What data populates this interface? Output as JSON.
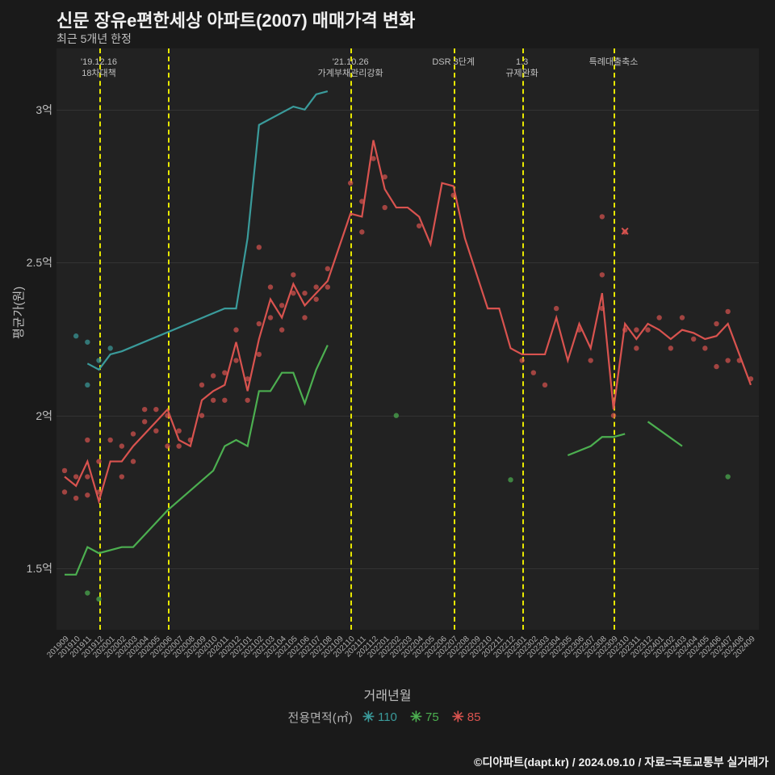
{
  "title": "신문 장유e편한세상 아파트(2007) 매매가격 변화",
  "subtitle": "최근 5개년 한정",
  "ylabel": "평균가(원)",
  "xlabel": "거래년월",
  "legend_title": "전용면적(㎡)",
  "footer": "©디아파트(dapt.kr) / 2024.09.10 / 자료=국토교통부 실거래가",
  "chart": {
    "type": "line+scatter",
    "background": "#222222",
    "page_bg": "#1a1a1a",
    "text_color": "#c0c0c0",
    "title_fontsize": 22,
    "subtitle_fontsize": 14,
    "label_fontsize": 15,
    "tick_fontsize": 12,
    "xcategories": [
      "201909",
      "201910",
      "201911",
      "201912",
      "202001",
      "202002",
      "202003",
      "202004",
      "202005",
      "202006",
      "202007",
      "202008",
      "202009",
      "202010",
      "202011",
      "202012",
      "202101",
      "202102",
      "202103",
      "202104",
      "202105",
      "202106",
      "202107",
      "202108",
      "202109",
      "202110",
      "202111",
      "202112",
      "202201",
      "202202",
      "202203",
      "202204",
      "202205",
      "202206",
      "202207",
      "202208",
      "202209",
      "202210",
      "202211",
      "202212",
      "202301",
      "202302",
      "202303",
      "202304",
      "202305",
      "202306",
      "202307",
      "202308",
      "202309",
      "202310",
      "202311",
      "202312",
      "202401",
      "202402",
      "202403",
      "202404",
      "202405",
      "202406",
      "202407",
      "202408",
      "202409"
    ],
    "ylim": [
      1.3,
      3.2
    ],
    "yticks": [
      1.5,
      2.0,
      2.5,
      3.0
    ],
    "ytick_labels": [
      "1.5억",
      "2억",
      "2.5억",
      "3억"
    ],
    "vlines": [
      {
        "x": "201912",
        "label": "'19.12.16\n18차대책",
        "color": "#e8e800"
      },
      {
        "x": "202006",
        "label": "",
        "color": "#e8e800"
      },
      {
        "x": "202110",
        "label": "'21.10.26\n가계부채관리강화",
        "color": "#e8e800"
      },
      {
        "x": "202207",
        "label": "DSR 3단계",
        "color": "#e8e800"
      },
      {
        "x": "202301",
        "label": "1.3\n규제완화",
        "color": "#e8e800"
      },
      {
        "x": "202309",
        "label": "특례대출축소",
        "color": "#e8e800"
      }
    ],
    "series": [
      {
        "name": "110",
        "color": "#3a9b9b",
        "marker": "x",
        "line": [
          {
            "x": "201911",
            "y": 2.17
          },
          {
            "x": "201912",
            "y": 2.15
          },
          {
            "x": "202001",
            "y": 2.2
          },
          {
            "x": "202002",
            "y": 2.21
          },
          {
            "x": "202011",
            "y": 2.35
          },
          {
            "x": "202012",
            "y": 2.35
          },
          {
            "x": "202101",
            "y": 2.58
          },
          {
            "x": "202102",
            "y": 2.95
          },
          {
            "x": "202104",
            "y": 2.99
          },
          {
            "x": "202105",
            "y": 3.01
          },
          {
            "x": "202106",
            "y": 3.0
          },
          {
            "x": "202107",
            "y": 3.05
          },
          {
            "x": "202108",
            "y": 3.06
          }
        ],
        "scatter": [
          {
            "x": "201910",
            "y": 2.26
          },
          {
            "x": "201911",
            "y": 2.1
          },
          {
            "x": "201911",
            "y": 2.24
          },
          {
            "x": "201912",
            "y": 2.18
          },
          {
            "x": "202001",
            "y": 2.22
          }
        ]
      },
      {
        "name": "75",
        "color": "#4caf50",
        "marker": "x",
        "line": [
          {
            "x": "201909",
            "y": 1.48
          },
          {
            "x": "201910",
            "y": 1.48
          },
          {
            "x": "201911",
            "y": 1.57
          },
          {
            "x": "201912",
            "y": 1.55
          },
          {
            "x": "202002",
            "y": 1.57
          },
          {
            "x": "202003",
            "y": 1.57
          },
          {
            "x": "202006",
            "y": 1.69
          },
          {
            "x": "202010",
            "y": 1.82
          },
          {
            "x": "202011",
            "y": 1.9
          },
          {
            "x": "202012",
            "y": 1.92
          },
          {
            "x": "202101",
            "y": 1.9
          },
          {
            "x": "202102",
            "y": 2.08
          },
          {
            "x": "202103",
            "y": 2.08
          },
          {
            "x": "202104",
            "y": 2.14
          },
          {
            "x": "202105",
            "y": 2.14
          },
          {
            "x": "202106",
            "y": 2.04
          },
          {
            "x": "202107",
            "y": 2.15
          },
          {
            "x": "202108",
            "y": 2.23
          }
        ],
        "line2": [
          {
            "x": "202305",
            "y": 1.87
          },
          {
            "x": "202307",
            "y": 1.9
          },
          {
            "x": "202308",
            "y": 1.93
          },
          {
            "x": "202309",
            "y": 1.93
          },
          {
            "x": "202310",
            "y": 1.94
          }
        ],
        "line3": [
          {
            "x": "202312",
            "y": 1.98
          },
          {
            "x": "202403",
            "y": 1.9
          }
        ],
        "scatter": [
          {
            "x": "201911",
            "y": 1.42
          },
          {
            "x": "201912",
            "y": 1.4
          },
          {
            "x": "202202",
            "y": 2.0
          },
          {
            "x": "202212",
            "y": 1.79
          },
          {
            "x": "202407",
            "y": 1.8
          }
        ]
      },
      {
        "name": "85",
        "color": "#d9534f",
        "marker": "x",
        "line": [
          {
            "x": "201909",
            "y": 1.8
          },
          {
            "x": "201910",
            "y": 1.77
          },
          {
            "x": "201911",
            "y": 1.85
          },
          {
            "x": "201912",
            "y": 1.72
          },
          {
            "x": "202001",
            "y": 1.85
          },
          {
            "x": "202002",
            "y": 1.85
          },
          {
            "x": "202003",
            "y": 1.9
          },
          {
            "x": "202004",
            "y": 1.94
          },
          {
            "x": "202005",
            "y": 1.98
          },
          {
            "x": "202006",
            "y": 2.02
          },
          {
            "x": "202007",
            "y": 1.92
          },
          {
            "x": "202008",
            "y": 1.9
          },
          {
            "x": "202009",
            "y": 2.05
          },
          {
            "x": "202010",
            "y": 2.08
          },
          {
            "x": "202011",
            "y": 2.1
          },
          {
            "x": "202012",
            "y": 2.24
          },
          {
            "x": "202101",
            "y": 2.08
          },
          {
            "x": "202102",
            "y": 2.25
          },
          {
            "x": "202103",
            "y": 2.38
          },
          {
            "x": "202104",
            "y": 2.32
          },
          {
            "x": "202105",
            "y": 2.43
          },
          {
            "x": "202106",
            "y": 2.36
          },
          {
            "x": "202107",
            "y": 2.4
          },
          {
            "x": "202108",
            "y": 2.44
          },
          {
            "x": "202110",
            "y": 2.66
          },
          {
            "x": "202111",
            "y": 2.65
          },
          {
            "x": "202112",
            "y": 2.9
          },
          {
            "x": "202201",
            "y": 2.74
          },
          {
            "x": "202202",
            "y": 2.68
          },
          {
            "x": "202203",
            "y": 2.68
          },
          {
            "x": "202204",
            "y": 2.65
          },
          {
            "x": "202205",
            "y": 2.56
          },
          {
            "x": "202206",
            "y": 2.76
          },
          {
            "x": "202207",
            "y": 2.75
          },
          {
            "x": "202208",
            "y": 2.58
          },
          {
            "x": "202210",
            "y": 2.35
          },
          {
            "x": "202211",
            "y": 2.35
          },
          {
            "x": "202212",
            "y": 2.22
          },
          {
            "x": "202301",
            "y": 2.2
          },
          {
            "x": "202302",
            "y": 2.2
          },
          {
            "x": "202303",
            "y": 2.2
          },
          {
            "x": "202304",
            "y": 2.32
          },
          {
            "x": "202305",
            "y": 2.18
          },
          {
            "x": "202306",
            "y": 2.3
          },
          {
            "x": "202307",
            "y": 2.22
          },
          {
            "x": "202308",
            "y": 2.4
          },
          {
            "x": "202309",
            "y": 2.02
          },
          {
            "x": "202310",
            "y": 2.3
          },
          {
            "x": "202311",
            "y": 2.25
          },
          {
            "x": "202312",
            "y": 2.3
          },
          {
            "x": "202401",
            "y": 2.28
          },
          {
            "x": "202402",
            "y": 2.25
          },
          {
            "x": "202403",
            "y": 2.28
          },
          {
            "x": "202404",
            "y": 2.27
          },
          {
            "x": "202405",
            "y": 2.25
          },
          {
            "x": "202406",
            "y": 2.26
          },
          {
            "x": "202407",
            "y": 2.3
          },
          {
            "x": "202408",
            "y": 2.2
          },
          {
            "x": "202409",
            "y": 2.1
          }
        ],
        "scatter": [
          {
            "x": "201909",
            "y": 1.75
          },
          {
            "x": "201909",
            "y": 1.82
          },
          {
            "x": "201910",
            "y": 1.73
          },
          {
            "x": "201910",
            "y": 1.8
          },
          {
            "x": "201911",
            "y": 1.8
          },
          {
            "x": "201911",
            "y": 1.92
          },
          {
            "x": "201911",
            "y": 1.74
          },
          {
            "x": "201912",
            "y": 1.75
          },
          {
            "x": "201912",
            "y": 1.85
          },
          {
            "x": "202001",
            "y": 1.92
          },
          {
            "x": "202002",
            "y": 1.9
          },
          {
            "x": "202002",
            "y": 1.8
          },
          {
            "x": "202003",
            "y": 1.94
          },
          {
            "x": "202003",
            "y": 1.85
          },
          {
            "x": "202004",
            "y": 1.98
          },
          {
            "x": "202004",
            "y": 2.02
          },
          {
            "x": "202005",
            "y": 1.95
          },
          {
            "x": "202005",
            "y": 2.02
          },
          {
            "x": "202006",
            "y": 2.0
          },
          {
            "x": "202006",
            "y": 1.9
          },
          {
            "x": "202007",
            "y": 1.9
          },
          {
            "x": "202007",
            "y": 1.95
          },
          {
            "x": "202008",
            "y": 1.92
          },
          {
            "x": "202009",
            "y": 2.0
          },
          {
            "x": "202009",
            "y": 2.1
          },
          {
            "x": "202010",
            "y": 2.05
          },
          {
            "x": "202010",
            "y": 2.13
          },
          {
            "x": "202011",
            "y": 2.14
          },
          {
            "x": "202011",
            "y": 2.05
          },
          {
            "x": "202012",
            "y": 2.28
          },
          {
            "x": "202012",
            "y": 2.18
          },
          {
            "x": "202101",
            "y": 2.05
          },
          {
            "x": "202101",
            "y": 2.12
          },
          {
            "x": "202102",
            "y": 2.2
          },
          {
            "x": "202102",
            "y": 2.3
          },
          {
            "x": "202102",
            "y": 2.55
          },
          {
            "x": "202103",
            "y": 2.42
          },
          {
            "x": "202103",
            "y": 2.32
          },
          {
            "x": "202104",
            "y": 2.28
          },
          {
            "x": "202104",
            "y": 2.36
          },
          {
            "x": "202105",
            "y": 2.4
          },
          {
            "x": "202105",
            "y": 2.46
          },
          {
            "x": "202106",
            "y": 2.32
          },
          {
            "x": "202106",
            "y": 2.4
          },
          {
            "x": "202107",
            "y": 2.38
          },
          {
            "x": "202107",
            "y": 2.42
          },
          {
            "x": "202108",
            "y": 2.42
          },
          {
            "x": "202108",
            "y": 2.48
          },
          {
            "x": "202110",
            "y": 2.76
          },
          {
            "x": "202111",
            "y": 2.6
          },
          {
            "x": "202111",
            "y": 2.7
          },
          {
            "x": "202112",
            "y": 2.84
          },
          {
            "x": "202201",
            "y": 2.68
          },
          {
            "x": "202201",
            "y": 2.78
          },
          {
            "x": "202204",
            "y": 2.62
          },
          {
            "x": "202207",
            "y": 2.72
          },
          {
            "x": "202301",
            "y": 2.18
          },
          {
            "x": "202302",
            "y": 2.14
          },
          {
            "x": "202303",
            "y": 2.1
          },
          {
            "x": "202304",
            "y": 2.35
          },
          {
            "x": "202306",
            "y": 2.28
          },
          {
            "x": "202307",
            "y": 2.18
          },
          {
            "x": "202308",
            "y": 2.35
          },
          {
            "x": "202308",
            "y": 2.46
          },
          {
            "x": "202308",
            "y": 2.65
          },
          {
            "x": "202309",
            "y": 2.0
          },
          {
            "x": "202310",
            "y": 2.28
          },
          {
            "x": "202310",
            "y": 2.6
          },
          {
            "x": "202311",
            "y": 2.22
          },
          {
            "x": "202311",
            "y": 2.28
          },
          {
            "x": "202312",
            "y": 2.28
          },
          {
            "x": "202401",
            "y": 2.32
          },
          {
            "x": "202402",
            "y": 2.22
          },
          {
            "x": "202403",
            "y": 2.32
          },
          {
            "x": "202404",
            "y": 2.25
          },
          {
            "x": "202405",
            "y": 2.22
          },
          {
            "x": "202406",
            "y": 2.16
          },
          {
            "x": "202406",
            "y": 2.3
          },
          {
            "x": "202407",
            "y": 2.18
          },
          {
            "x": "202407",
            "y": 2.34
          },
          {
            "x": "202408",
            "y": 2.18
          },
          {
            "x": "202409",
            "y": 2.12
          }
        ]
      }
    ]
  }
}
